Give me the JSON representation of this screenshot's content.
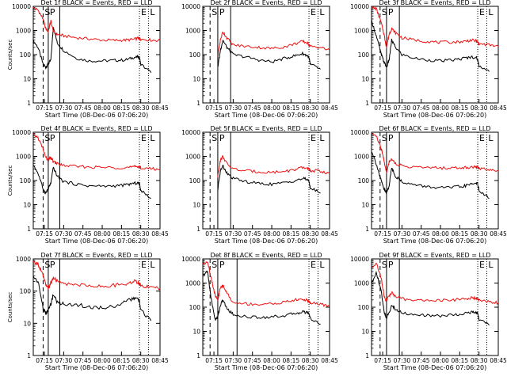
{
  "figure": {
    "common": {
      "xlabel": "Start Time (08-Dec-06 07:06:20)",
      "ylabel": "Counts/sec",
      "xtick_labels": [
        "07:15",
        "07:30",
        "07:45",
        "08:00",
        "08:15",
        "08:30",
        "08:45"
      ],
      "ytick_labels": [
        "1",
        "10",
        "100",
        "1000",
        "10000"
      ],
      "marker_labels": [
        "S",
        "P",
        "E",
        "L"
      ]
    },
    "colors": {
      "events": "#000000",
      "lld": "#ee1111",
      "axes": "#000000",
      "background": "#ffffff"
    }
  },
  "chart_data": [
    {
      "type": "line",
      "title": "Det 1f BLACK = Events, RED = LLD",
      "xlabel": "Start Time (08-Dec-06 07:06:20)",
      "ylabel": "Counts/sec",
      "xlim": [
        "07:06:20",
        "08:45"
      ],
      "ylim": [
        1,
        10000
      ],
      "yscale": "log",
      "grid": false,
      "legend": "none",
      "x": [
        "07:06",
        "07:10",
        "07:14",
        "07:16",
        "07:18",
        "07:20",
        "07:22",
        "07:25",
        "07:30",
        "07:40",
        "07:50",
        "08:00",
        "08:10",
        "08:18",
        "08:24",
        "08:28",
        "08:29",
        "08:30",
        "08:38",
        "08:45"
      ],
      "series": [
        {
          "key": "events",
          "values": [
            400,
            200,
            40,
            30,
            40,
            60,
            1500,
            300,
            150,
            70,
            55,
            55,
            58,
            60,
            75,
            80,
            70,
            40,
            18,
            null
          ]
        },
        {
          "key": "lld",
          "values": [
            9000,
            7000,
            3000,
            1200,
            900,
            2500,
            900,
            700,
            600,
            500,
            450,
            400,
            390,
            400,
            420,
            480,
            460,
            440,
            400,
            380
          ]
        }
      ],
      "dashed_lines": [
        "07:14"
      ],
      "solid_lines": [
        "07:18",
        "07:27"
      ],
      "dotted_lines": [
        "08:29",
        "08:36"
      ]
    },
    {
      "type": "line",
      "title": "Det 2f BLACK = Events, RED = LLD",
      "xlabel": "Start Time (08-Dec-06 07:06:20)",
      "ylabel": "",
      "xlim": [
        "07:06:20",
        "08:45"
      ],
      "ylim": [
        1,
        10000
      ],
      "yscale": "log",
      "grid": false,
      "legend": "none",
      "x": [
        "07:06",
        "07:10",
        "07:13",
        "07:16",
        "07:18",
        "07:20",
        "07:22",
        "07:25",
        "07:30",
        "07:40",
        "07:50",
        "08:00",
        "08:10",
        "08:18",
        "08:24",
        "08:28",
        "08:29",
        "08:30",
        "08:38",
        "08:45"
      ],
      "series": [
        {
          "key": "events",
          "values": [
            null,
            null,
            null,
            null,
            30,
            150,
            400,
            200,
            100,
            80,
            60,
            50,
            70,
            90,
            110,
            90,
            70,
            40,
            25,
            null
          ]
        },
        {
          "key": "lld",
          "values": [
            null,
            null,
            null,
            null,
            80,
            400,
            900,
            500,
            250,
            220,
            200,
            180,
            210,
            280,
            350,
            300,
            250,
            220,
            200,
            150
          ]
        }
      ],
      "dashed_lines": [
        "07:12"
      ],
      "solid_lines": [
        "07:18",
        "07:28"
      ],
      "dotted_lines": [
        "08:29",
        "08:36"
      ]
    },
    {
      "type": "line",
      "title": "Det 3f BLACK = Events, RED = LLD",
      "xlabel": "Start Time (08-Dec-06 07:06:20)",
      "ylabel": "",
      "xlim": [
        "07:06:20",
        "08:45"
      ],
      "ylim": [
        1,
        10000
      ],
      "yscale": "log",
      "grid": false,
      "legend": "none",
      "x": [
        "07:06",
        "07:10",
        "07:14",
        "07:16",
        "07:18",
        "07:20",
        "07:22",
        "07:25",
        "07:30",
        "07:40",
        "07:50",
        "08:00",
        "08:10",
        "08:18",
        "08:24",
        "08:28",
        "08:29",
        "08:30",
        "08:38",
        "08:45"
      ],
      "series": [
        {
          "key": "events",
          "values": [
            3000,
            600,
            100,
            50,
            30,
            60,
            400,
            200,
            100,
            70,
            60,
            55,
            60,
            70,
            80,
            75,
            60,
            35,
            20,
            null
          ]
        },
        {
          "key": "lld",
          "values": [
            9000,
            8000,
            2000,
            700,
            200,
            700,
            1200,
            800,
            500,
            400,
            350,
            320,
            330,
            350,
            400,
            360,
            320,
            280,
            250,
            220
          ]
        }
      ],
      "dashed_lines": [
        "07:13"
      ],
      "solid_lines": [
        "07:18",
        "07:28"
      ],
      "dotted_lines": [
        "08:29",
        "08:36"
      ]
    },
    {
      "type": "line",
      "title": "Det 4f BLACK = Events, RED = LLD",
      "xlabel": "Start Time (08-Dec-06 07:06:20)",
      "ylabel": "Counts/sec",
      "xlim": [
        "07:06:20",
        "08:45"
      ],
      "ylim": [
        1,
        10000
      ],
      "yscale": "log",
      "grid": false,
      "legend": "none",
      "x": [
        "07:06",
        "07:10",
        "07:14",
        "07:16",
        "07:18",
        "07:20",
        "07:22",
        "07:25",
        "07:30",
        "07:40",
        "07:50",
        "08:00",
        "08:10",
        "08:18",
        "08:24",
        "08:28",
        "08:29",
        "08:30",
        "08:38",
        "08:45"
      ],
      "series": [
        {
          "key": "events",
          "values": [
            500,
            200,
            45,
            30,
            45,
            80,
            350,
            150,
            90,
            70,
            60,
            58,
            60,
            65,
            75,
            80,
            70,
            40,
            18,
            null
          ]
        },
        {
          "key": "lld",
          "values": [
            8000,
            6000,
            2000,
            900,
            700,
            900,
            600,
            500,
            420,
            380,
            360,
            350,
            340,
            345,
            360,
            380,
            360,
            340,
            310,
            290
          ]
        }
      ],
      "dashed_lines": [
        "07:14"
      ],
      "solid_lines": [
        "07:18",
        "07:27"
      ],
      "dotted_lines": [
        "08:29",
        "08:36"
      ]
    },
    {
      "type": "line",
      "title": "Det 5f BLACK = Events, RED = LLD",
      "xlabel": "Start Time (08-Dec-06 07:06:20)",
      "ylabel": "",
      "xlim": [
        "07:06:20",
        "08:45"
      ],
      "ylim": [
        1,
        10000
      ],
      "yscale": "log",
      "grid": false,
      "legend": "none",
      "x": [
        "07:06",
        "07:10",
        "07:13",
        "07:16",
        "07:18",
        "07:20",
        "07:22",
        "07:25",
        "07:30",
        "07:40",
        "07:50",
        "08:00",
        "08:10",
        "08:18",
        "08:24",
        "08:28",
        "08:29",
        "08:30",
        "08:38",
        "08:45"
      ],
      "series": [
        {
          "key": "events",
          "values": [
            null,
            null,
            null,
            null,
            40,
            250,
            400,
            200,
            120,
            90,
            75,
            70,
            80,
            100,
            120,
            110,
            90,
            50,
            30,
            null
          ]
        },
        {
          "key": "lld",
          "values": [
            null,
            null,
            null,
            null,
            150,
            700,
            1000,
            500,
            300,
            250,
            230,
            220,
            240,
            280,
            340,
            320,
            290,
            260,
            240,
            200
          ]
        }
      ],
      "dashed_lines": [
        "07:12"
      ],
      "solid_lines": [
        "07:18",
        "07:28"
      ],
      "dotted_lines": [
        "08:29",
        "08:36"
      ]
    },
    {
      "type": "line",
      "title": "Det 6f BLACK = Events, RED = LLD",
      "xlabel": "Start Time (08-Dec-06 07:06:20)",
      "ylabel": "",
      "xlim": [
        "07:06:20",
        "08:45"
      ],
      "ylim": [
        1,
        10000
      ],
      "yscale": "log",
      "grid": false,
      "legend": "none",
      "x": [
        "07:06",
        "07:10",
        "07:14",
        "07:16",
        "07:18",
        "07:20",
        "07:22",
        "07:25",
        "07:30",
        "07:40",
        "07:50",
        "08:00",
        "08:10",
        "08:18",
        "08:24",
        "08:28",
        "08:29",
        "08:30",
        "08:38",
        "08:45"
      ],
      "series": [
        {
          "key": "events",
          "values": [
            2000,
            500,
            90,
            45,
            30,
            60,
            350,
            150,
            90,
            65,
            55,
            50,
            52,
            58,
            70,
            80,
            70,
            40,
            18,
            null
          ]
        },
        {
          "key": "lld",
          "values": [
            9000,
            7000,
            2000,
            700,
            200,
            600,
            800,
            500,
            400,
            360,
            340,
            330,
            330,
            340,
            360,
            370,
            350,
            320,
            290,
            260
          ]
        }
      ],
      "dashed_lines": [
        "07:13"
      ],
      "solid_lines": [
        "07:18",
        "07:28"
      ],
      "dotted_lines": [
        "08:29",
        "08:36"
      ]
    },
    {
      "type": "line",
      "title": "Det 7f BLACK = Events, RED = LLD",
      "xlabel": "Start Time (08-Dec-06 07:06:20)",
      "ylabel": "Counts/sec",
      "xlim": [
        "07:06:20",
        "08:45"
      ],
      "ylim": [
        1,
        1000
      ],
      "yscale": "log",
      "grid": false,
      "legend": "none",
      "x": [
        "07:06",
        "07:10",
        "07:14",
        "07:16",
        "07:18",
        "07:20",
        "07:22",
        "07:25",
        "07:30",
        "07:40",
        "07:50",
        "08:00",
        "08:10",
        "08:18",
        "08:24",
        "08:28",
        "08:29",
        "08:30",
        "08:38",
        "08:45"
      ],
      "series": [
        {
          "key": "events",
          "values": [
            300,
            200,
            30,
            20,
            25,
            40,
            80,
            45,
            40,
            38,
            32,
            30,
            35,
            45,
            60,
            55,
            45,
            25,
            12,
            null
          ]
        },
        {
          "key": "lld",
          "values": [
            800,
            700,
            300,
            150,
            120,
            180,
            260,
            200,
            170,
            160,
            150,
            140,
            150,
            170,
            200,
            190,
            170,
            150,
            130,
            120
          ]
        }
      ],
      "dashed_lines": [
        "07:14"
      ],
      "solid_lines": [
        "07:18",
        "07:27"
      ],
      "dotted_lines": [
        "08:29",
        "08:36"
      ]
    },
    {
      "type": "line",
      "title": "Det 8f BLACK = Events, RED = LLD",
      "xlabel": "Start Time (08-Dec-06 07:06:20)",
      "ylabel": "",
      "xlim": [
        "07:06:20",
        "08:45"
      ],
      "ylim": [
        1,
        10000
      ],
      "yscale": "log",
      "grid": false,
      "legend": "none",
      "x": [
        "07:06",
        "07:10",
        "07:13",
        "07:16",
        "07:18",
        "07:20",
        "07:22",
        "07:25",
        "07:30",
        "07:40",
        "07:50",
        "08:00",
        "08:10",
        "08:18",
        "08:24",
        "08:28",
        "08:29",
        "08:30",
        "08:38",
        "08:45"
      ],
      "series": [
        {
          "key": "events",
          "values": [
            2000,
            3000,
            200,
            30,
            40,
            120,
            200,
            90,
            50,
            40,
            38,
            40,
            45,
            55,
            65,
            60,
            55,
            35,
            20,
            null
          ]
        },
        {
          "key": "lld",
          "values": [
            6000,
            8000,
            1500,
            300,
            200,
            600,
            800,
            400,
            150,
            140,
            130,
            140,
            160,
            200,
            210,
            190,
            170,
            150,
            130,
            110
          ]
        }
      ],
      "dashed_lines": [
        "07:12"
      ],
      "solid_lines": [
        "07:18",
        "07:33"
      ],
      "dotted_lines": [
        "08:29",
        "08:36"
      ]
    },
    {
      "type": "line",
      "title": "Det 9f BLACK = Events, RED = LLD",
      "xlabel": "Start Time (08-Dec-06 07:06:20)",
      "ylabel": "",
      "xlim": [
        "07:06:20",
        "08:45"
      ],
      "ylim": [
        1,
        10000
      ],
      "yscale": "log",
      "grid": false,
      "legend": "none",
      "x": [
        "07:06",
        "07:10",
        "07:14",
        "07:16",
        "07:18",
        "07:20",
        "07:22",
        "07:25",
        "07:30",
        "07:40",
        "07:50",
        "08:00",
        "08:10",
        "08:18",
        "08:24",
        "08:28",
        "08:29",
        "08:30",
        "08:38",
        "08:45"
      ],
      "series": [
        {
          "key": "events",
          "values": [
            800,
            3000,
            400,
            70,
            35,
            60,
            120,
            80,
            60,
            48,
            45,
            44,
            48,
            55,
            62,
            58,
            52,
            32,
            18,
            null
          ]
        },
        {
          "key": "lld",
          "values": [
            4000,
            7000,
            1500,
            300,
            180,
            300,
            400,
            280,
            220,
            200,
            190,
            190,
            200,
            220,
            240,
            230,
            210,
            190,
            170,
            150
          ]
        }
      ],
      "dashed_lines": [
        "07:13"
      ],
      "solid_lines": [
        "07:18",
        "07:28"
      ],
      "dotted_lines": [
        "08:29",
        "08:36"
      ]
    }
  ]
}
